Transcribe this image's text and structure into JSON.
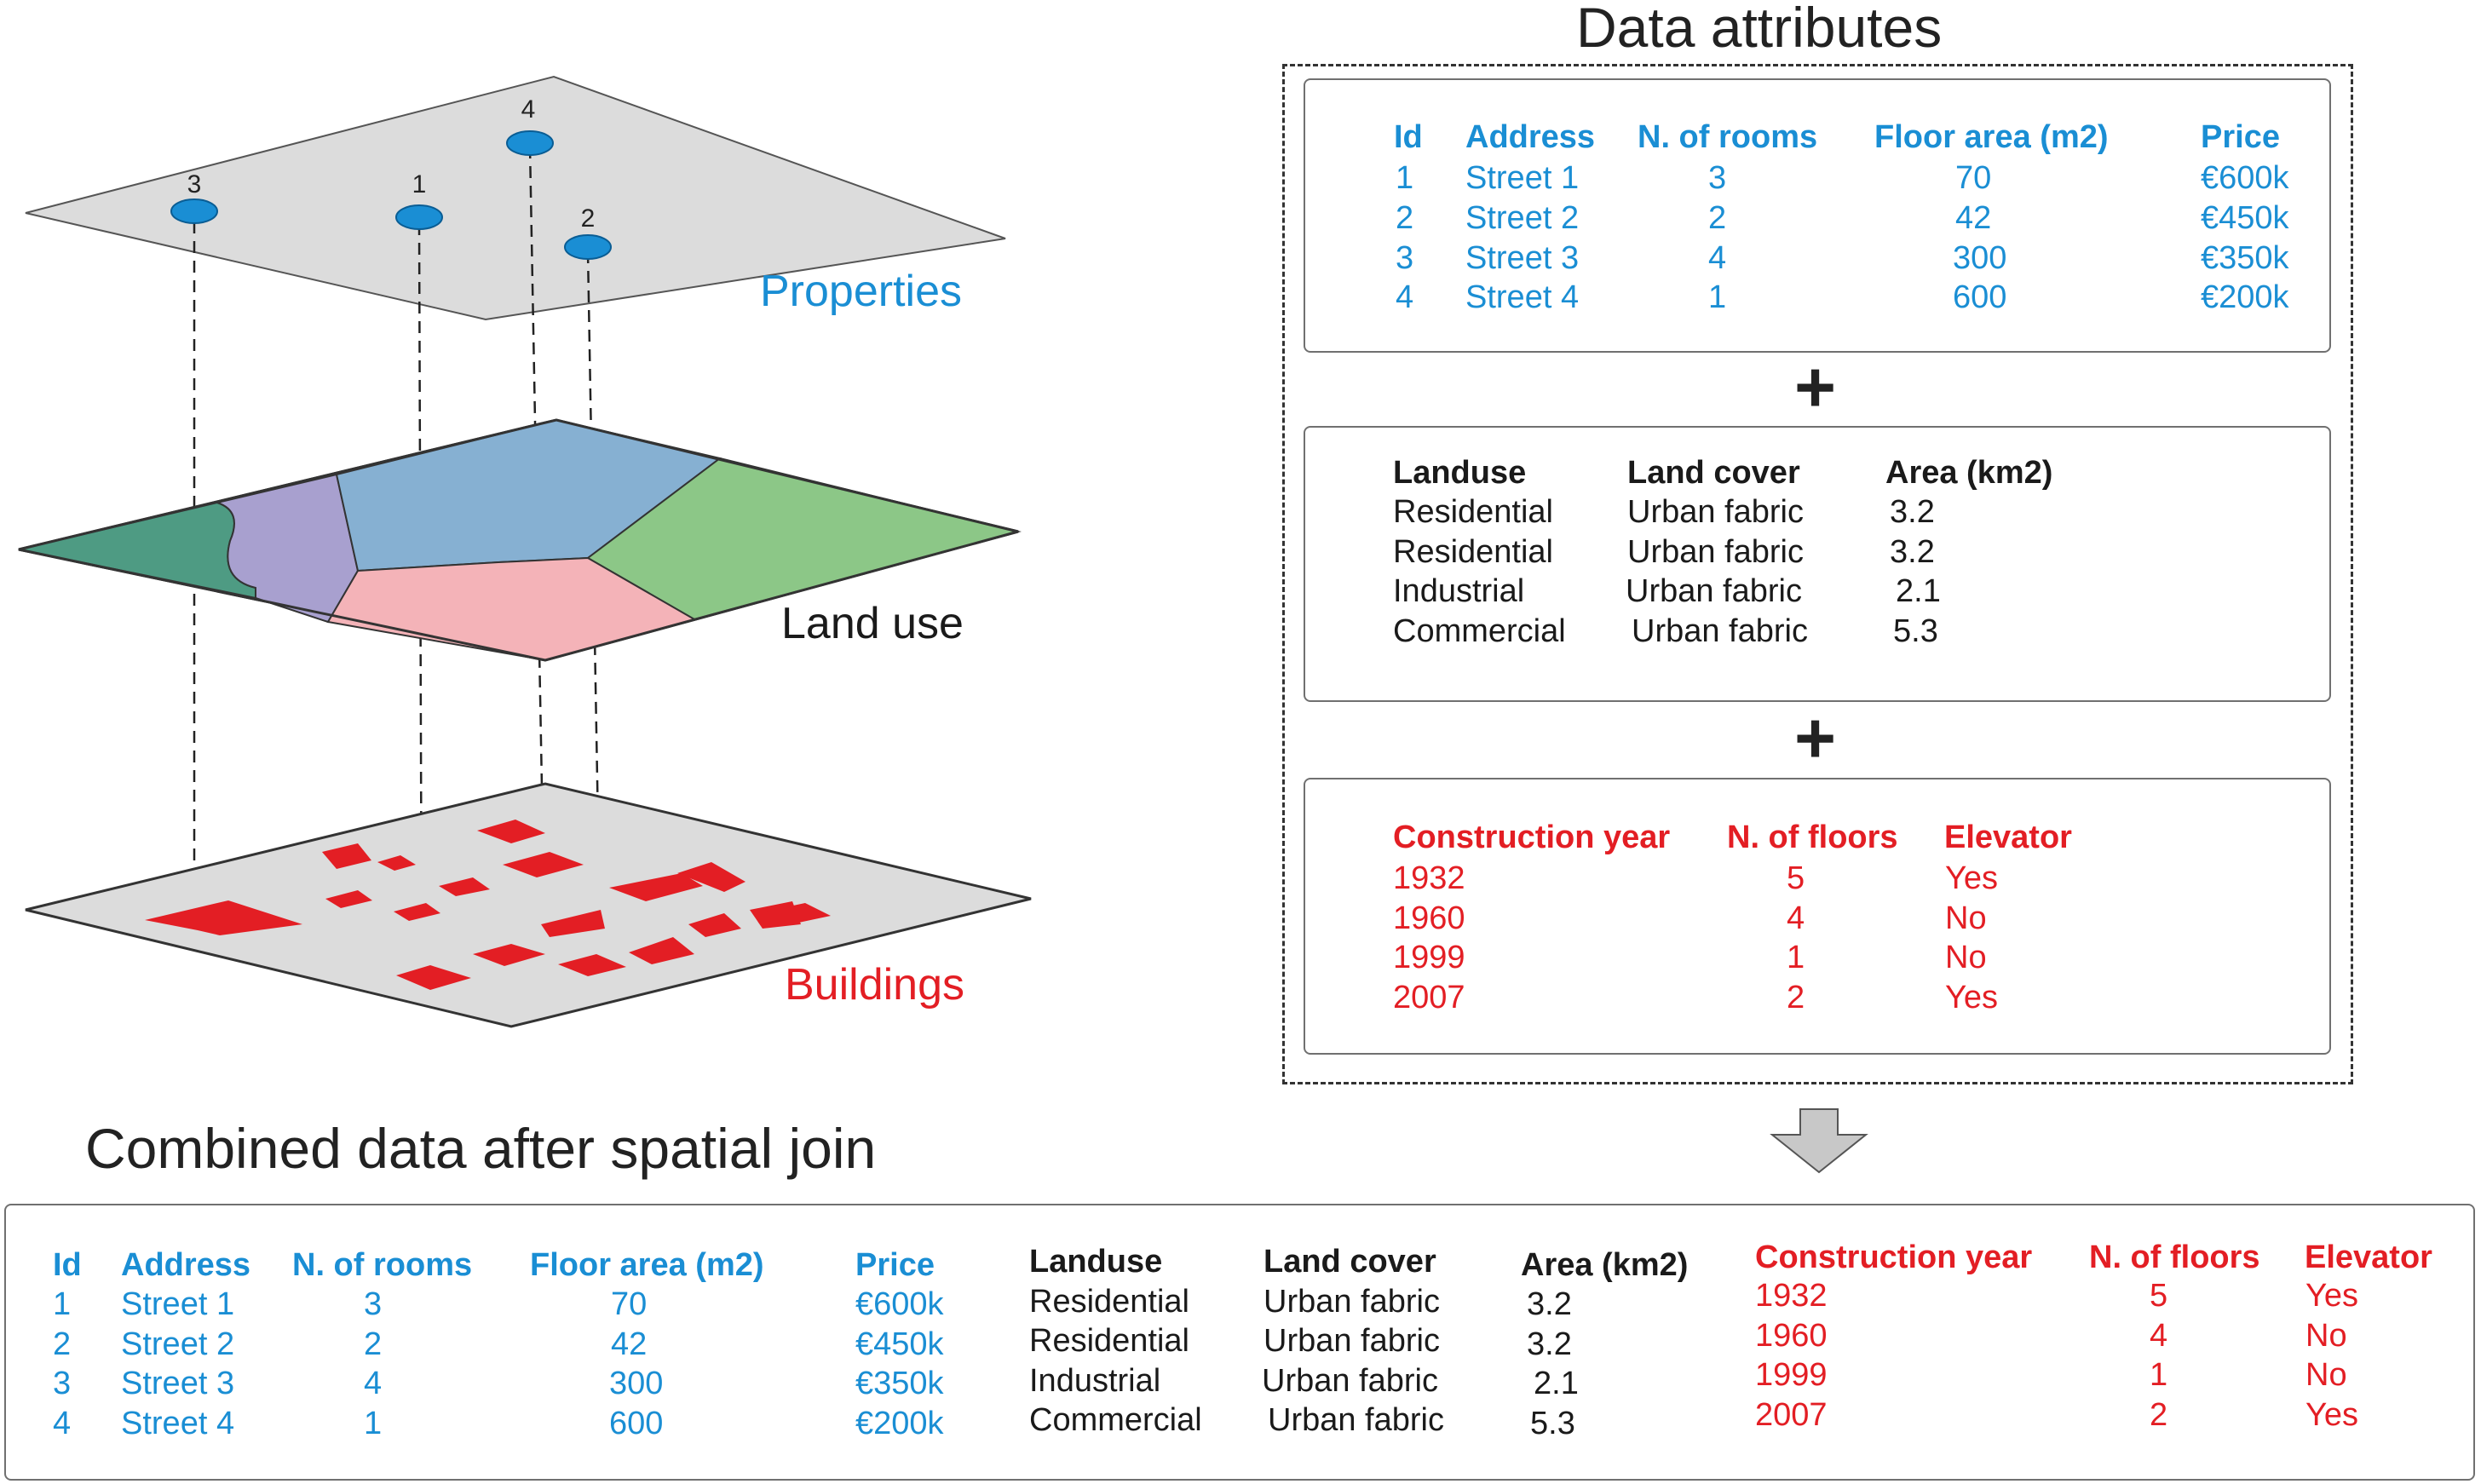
{
  "layers": {
    "properties": "Properties",
    "land_use": "Land use",
    "buildings": "Buildings"
  },
  "points": [
    "3",
    "1",
    "4",
    "2"
  ],
  "data_attributes_title": "Data attributes",
  "combined_title": "Combined data after spatial join",
  "plus_sign": "+",
  "properties_table": {
    "headers": [
      "Id",
      "Address",
      "N. of rooms",
      "Floor area (m2)",
      "Price"
    ],
    "rows": [
      [
        "1",
        "Street 1",
        "3",
        "70",
        "€600k"
      ],
      [
        "2",
        "Street 2",
        "2",
        "42",
        "€450k"
      ],
      [
        "3",
        "Street 3",
        "4",
        "300",
        "€350k"
      ],
      [
        "4",
        "Street 4",
        "1",
        "600",
        "€200k"
      ]
    ]
  },
  "landuse_table": {
    "headers": [
      "Landuse",
      "Land cover",
      "Area (km2)"
    ],
    "rows": [
      [
        "Residential",
        "Urban fabric",
        "3.2"
      ],
      [
        "Residential",
        "Urban fabric",
        "3.2"
      ],
      [
        "Industrial",
        "Urban fabric",
        "2.1"
      ],
      [
        "Commercial",
        "Urban fabric",
        "5.3"
      ]
    ]
  },
  "buildings_table": {
    "headers": [
      "Construction year",
      "N. of floors",
      "Elevator"
    ],
    "rows": [
      [
        "1932",
        "5",
        "Yes"
      ],
      [
        "1960",
        "4",
        "No"
      ],
      [
        "1999",
        "1",
        "No"
      ],
      [
        "2007",
        "2",
        "Yes"
      ]
    ]
  },
  "colors": {
    "properties": "#1a8ed4",
    "landuse_text": "#1a1a1a",
    "buildings": "#e31e24",
    "plane_gray": "#dcdcdc",
    "landuse_dark_green": "#4e9b83",
    "landuse_purple": "#a8a0cf",
    "landuse_blue": "#86b0d2",
    "landuse_green": "#8cc787",
    "landuse_pink": "#f4b3b8",
    "arrow": "#c8c8c8"
  }
}
